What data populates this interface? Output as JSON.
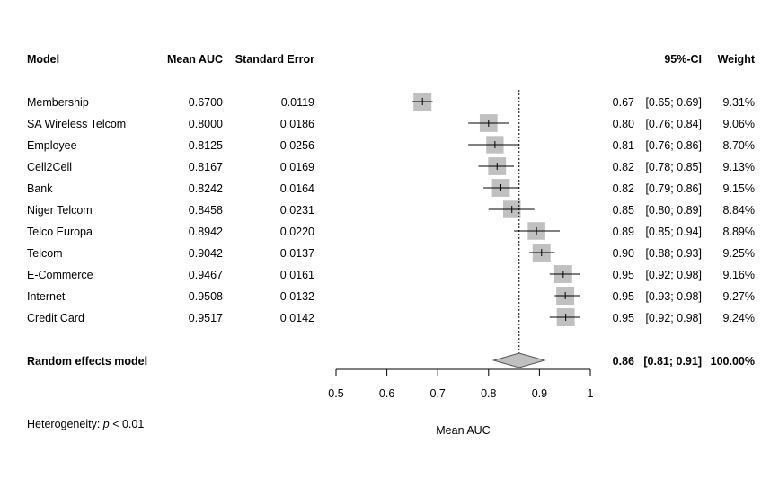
{
  "headers": {
    "model": "Model",
    "mean_auc": "Mean AUC",
    "standard_error": "Standard Error",
    "ci": "95%-CI",
    "weight": "Weight"
  },
  "chart_data": {
    "type": "forest",
    "xlabel": "Mean AUC",
    "xlim": [
      0.5,
      1.0
    ],
    "x_ticks": [
      "0.5",
      "0.6",
      "0.7",
      "0.8",
      "0.9",
      "1"
    ],
    "reference_line": 0.86,
    "studies": [
      {
        "model": "Membership",
        "mean_auc": "0.6700",
        "se": "0.0119",
        "est": "0.67",
        "ci": "[0.65; 0.69]",
        "weight": "9.31%",
        "value": 0.67,
        "lo": 0.65,
        "hi": 0.69,
        "w": 9.31
      },
      {
        "model": "SA Wireless Telcom",
        "mean_auc": "0.8000",
        "se": "0.0186",
        "est": "0.80",
        "ci": "[0.76; 0.84]",
        "weight": "9.06%",
        "value": 0.8,
        "lo": 0.76,
        "hi": 0.84,
        "w": 9.06
      },
      {
        "model": "Employee",
        "mean_auc": "0.8125",
        "se": "0.0256",
        "est": "0.81",
        "ci": "[0.76; 0.86]",
        "weight": "8.70%",
        "value": 0.8125,
        "lo": 0.76,
        "hi": 0.86,
        "w": 8.7
      },
      {
        "model": "Cell2Cell",
        "mean_auc": "0.8167",
        "se": "0.0169",
        "est": "0.82",
        "ci": "[0.78; 0.85]",
        "weight": "9.13%",
        "value": 0.8167,
        "lo": 0.78,
        "hi": 0.85,
        "w": 9.13
      },
      {
        "model": "Bank",
        "mean_auc": "0.8242",
        "se": "0.0164",
        "est": "0.82",
        "ci": "[0.79; 0.86]",
        "weight": "9.15%",
        "value": 0.8242,
        "lo": 0.79,
        "hi": 0.86,
        "w": 9.15
      },
      {
        "model": "Niger Telcom",
        "mean_auc": "0.8458",
        "se": "0.0231",
        "est": "0.85",
        "ci": "[0.80; 0.89]",
        "weight": "8.84%",
        "value": 0.8458,
        "lo": 0.8,
        "hi": 0.89,
        "w": 8.84
      },
      {
        "model": "Telco Europa",
        "mean_auc": "0.8942",
        "se": "0.0220",
        "est": "0.89",
        "ci": "[0.85; 0.94]",
        "weight": "8.89%",
        "value": 0.8942,
        "lo": 0.85,
        "hi": 0.94,
        "w": 8.89
      },
      {
        "model": "Telcom",
        "mean_auc": "0.9042",
        "se": "0.0137",
        "est": "0.90",
        "ci": "[0.88; 0.93]",
        "weight": "9.25%",
        "value": 0.9042,
        "lo": 0.88,
        "hi": 0.93,
        "w": 9.25
      },
      {
        "model": "E-Commerce",
        "mean_auc": "0.9467",
        "se": "0.0161",
        "est": "0.95",
        "ci": "[0.92; 0.98]",
        "weight": "9.16%",
        "value": 0.9467,
        "lo": 0.92,
        "hi": 0.98,
        "w": 9.16
      },
      {
        "model": "Internet",
        "mean_auc": "0.9508",
        "se": "0.0132",
        "est": "0.95",
        "ci": "[0.93; 0.98]",
        "weight": "9.27%",
        "value": 0.9508,
        "lo": 0.93,
        "hi": 0.98,
        "w": 9.27
      },
      {
        "model": "Credit Card",
        "mean_auc": "0.9517",
        "se": "0.0142",
        "est": "0.95",
        "ci": "[0.92; 0.98]",
        "weight": "9.24%",
        "value": 0.9517,
        "lo": 0.92,
        "hi": 0.98,
        "w": 9.24
      }
    ],
    "summary": {
      "model": "Random effects model",
      "est": "0.86",
      "ci": "[0.81; 0.91]",
      "weight": "100.00%",
      "value": 0.86,
      "lo": 0.81,
      "hi": 0.91
    },
    "heterogeneity": {
      "prefix": "Heterogeneity: ",
      "p_symbol": "p",
      "suffix": " < 0.01"
    }
  },
  "colors": {
    "box": "#c0c0c0",
    "diamond": "#c0c0c0",
    "line": "#000000"
  }
}
